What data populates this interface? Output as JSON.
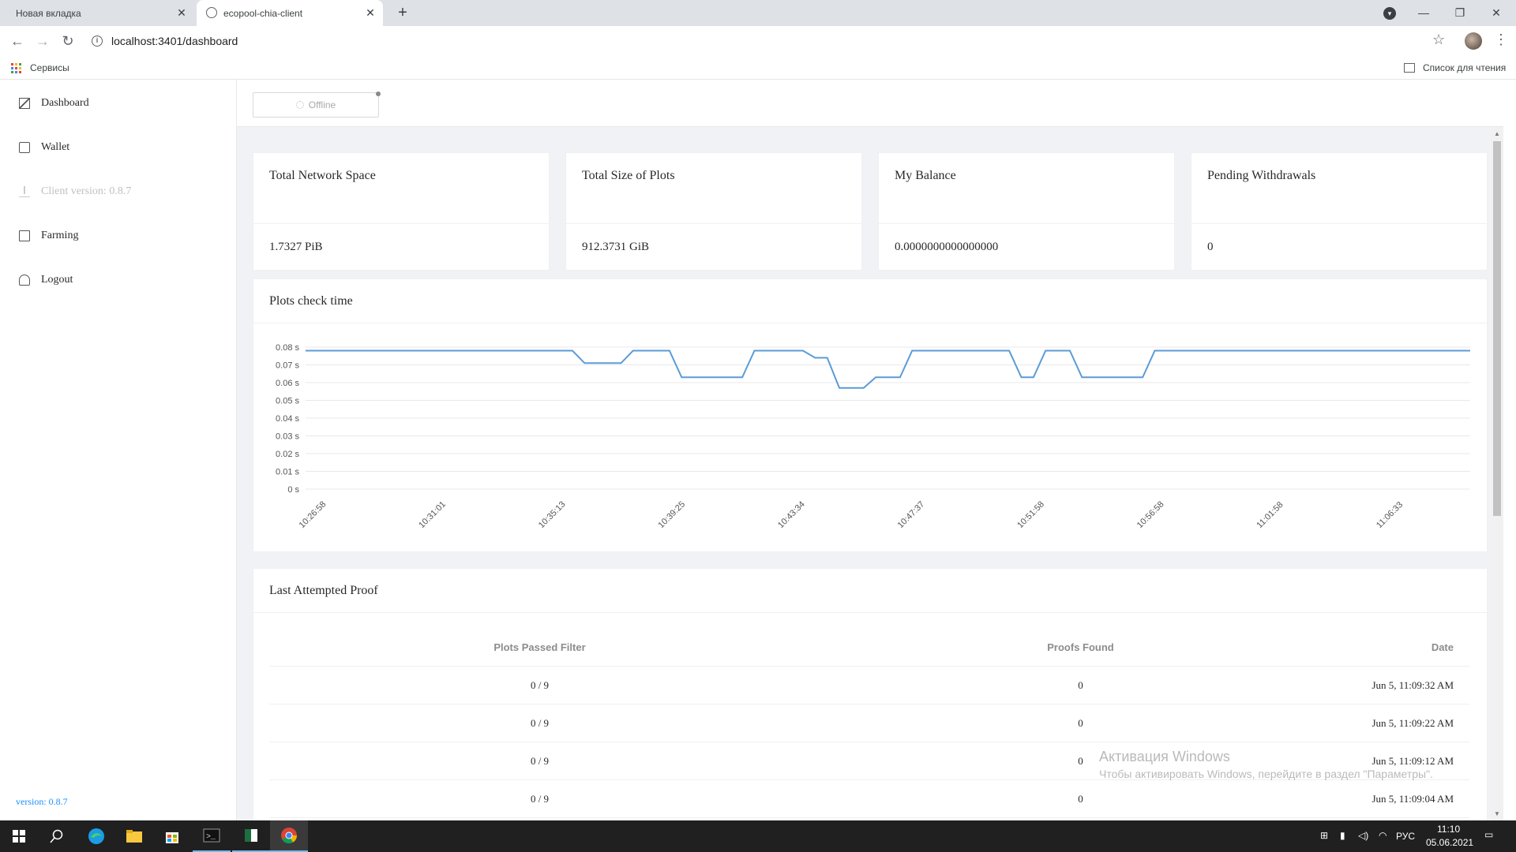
{
  "browser": {
    "tabs": [
      {
        "label": "Новая вкладка",
        "active": false
      },
      {
        "label": "ecopool-chia-client",
        "active": true
      }
    ],
    "url": "localhost:3401/dashboard",
    "bookmarks": {
      "apps_label": "Сервисы",
      "reading_list_label": "Список для чтения"
    }
  },
  "sidebar": {
    "items": [
      {
        "label": "Dashboard",
        "icon": "dashboard-icon"
      },
      {
        "label": "Wallet",
        "icon": "wallet-icon"
      },
      {
        "label": "Client version: 0.8.7",
        "icon": "download-icon",
        "disabled": true
      },
      {
        "label": "Farming",
        "icon": "farming-icon"
      },
      {
        "label": "Logout",
        "icon": "user-icon"
      }
    ],
    "version": "version: 0.8.7"
  },
  "status": {
    "label": "Offline"
  },
  "stats": [
    {
      "title": "Total Network Space",
      "value": "1.7327 PiB"
    },
    {
      "title": "Total Size of Plots",
      "value": "912.3731 GiB"
    },
    {
      "title": "My Balance",
      "value": "0.0000000000000000"
    },
    {
      "title": "Pending Withdrawals",
      "value": "0"
    }
  ],
  "chart_section": {
    "title": "Plots check time"
  },
  "chart_data": {
    "type": "line",
    "title": "Plots check time",
    "y_ticks": [
      "0 s",
      "0.01 s",
      "0.02 s",
      "0.03 s",
      "0.04 s",
      "0.05 s",
      "0.06 s",
      "0.07 s",
      "0.08 s"
    ],
    "ylim": [
      0,
      0.08
    ],
    "x_ticks": [
      "10:26:58",
      "10:31:01",
      "10:35:13",
      "10:39:25",
      "10:43:34",
      "10:47:37",
      "10:51:58",
      "10:56:58",
      "11:01:58",
      "11:06:33"
    ],
    "grid": true,
    "series": [
      {
        "color": "#5b9bd5",
        "values": [
          0.078,
          0.078,
          0.078,
          0.078,
          0.078,
          0.078,
          0.078,
          0.078,
          0.078,
          0.078,
          0.078,
          0.078,
          0.078,
          0.078,
          0.078,
          0.078,
          0.078,
          0.078,
          0.078,
          0.078,
          0.078,
          0.078,
          0.078,
          0.071,
          0.071,
          0.071,
          0.071,
          0.078,
          0.078,
          0.078,
          0.078,
          0.063,
          0.063,
          0.063,
          0.063,
          0.063,
          0.063,
          0.078,
          0.078,
          0.078,
          0.078,
          0.078,
          0.074,
          0.074,
          0.057,
          0.057,
          0.057,
          0.063,
          0.063,
          0.063,
          0.078,
          0.078,
          0.078,
          0.078,
          0.078,
          0.078,
          0.078,
          0.078,
          0.078,
          0.063,
          0.063,
          0.078,
          0.078,
          0.078,
          0.063,
          0.063,
          0.063,
          0.063,
          0.063,
          0.063,
          0.078,
          0.078,
          0.078,
          0.078,
          0.078,
          0.078,
          0.078,
          0.078,
          0.078,
          0.078,
          0.078,
          0.078,
          0.078,
          0.078,
          0.078,
          0.078,
          0.078,
          0.078,
          0.078,
          0.078,
          0.078,
          0.078,
          0.078,
          0.078,
          0.078,
          0.078,
          0.078
        ]
      }
    ]
  },
  "proofs": {
    "title": "Last Attempted Proof",
    "columns": [
      "Plots Passed Filter",
      "Proofs Found",
      "Date"
    ],
    "rows": [
      [
        "0 / 9",
        "0",
        "Jun 5, 11:09:32 AM"
      ],
      [
        "0 / 9",
        "0",
        "Jun 5, 11:09:22 AM"
      ],
      [
        "0 / 9",
        "0",
        "Jun 5, 11:09:12 AM"
      ],
      [
        "0 / 9",
        "0",
        "Jun 5, 11:09:04 AM"
      ]
    ]
  },
  "watermark": {
    "line1": "Активация Windows",
    "line2": "Чтобы активировать Windows, перейдите в раздел \"Параметры\"."
  },
  "taskbar": {
    "lang": "РУС",
    "time": "11:10",
    "date": "05.06.2021"
  }
}
